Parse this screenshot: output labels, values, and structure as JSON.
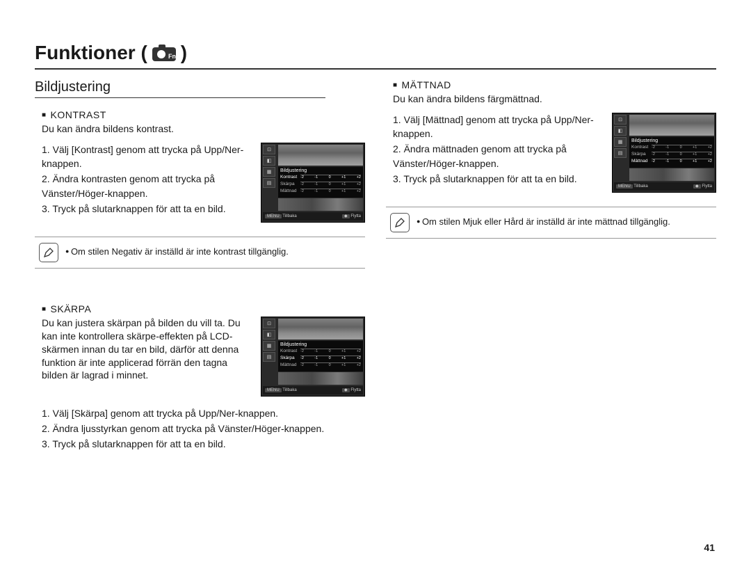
{
  "header": {
    "title_prefix": "Funktioner (",
    "title_suffix": " )"
  },
  "left": {
    "section_title": "Bildjustering",
    "kontrast": {
      "heading": "KONTRAST",
      "desc": "Du kan ändra bildens kontrast.",
      "steps": [
        "1. Välj [Kontrast] genom att trycka på Upp/Ner-knappen.",
        "2. Ändra kontrasten genom att trycka på Vänster/Höger-knappen.",
        "3. Tryck på slutarknappen för att ta en bild."
      ],
      "note": "Om stilen Negativ är inställd är inte kontrast tillgänglig."
    },
    "skarpa": {
      "heading": "SKÄRPA",
      "desc": "Du kan justera skärpan på bilden du vill ta. Du kan inte kontrollera skärpe-effekten på LCD-skärmen innan du tar en bild, därför att denna funktion är inte applicerad förrän den tagna bilden är lagrad i minnet.",
      "steps": [
        "1. Välj [Skärpa] genom att trycka på Upp/Ner-knappen.",
        "2. Ändra ljusstyrkan genom att trycka på Vänster/Höger-knappen.",
        "3. Tryck på slutarknappen för att ta en bild."
      ]
    }
  },
  "right": {
    "mattnad": {
      "heading": "MÄTTNAD",
      "desc": "Du kan ändra bildens färgmättnad.",
      "steps": [
        "1. Välj [Mättnad] genom att trycka på Upp/Ner-knappen.",
        "2. Ändra mättnaden genom att trycka på Vänster/Höger-knappen.",
        "3. Tryck på slutarknappen för att ta en bild."
      ],
      "note": "Om stilen Mjuk eller Hård är inställd är inte mättnad tillgänglig."
    }
  },
  "lcd": {
    "panel_title": "Bildjustering",
    "rows": [
      {
        "label": "Kontrast",
        "ticks": [
          "-2",
          "-1",
          "0",
          "+1",
          "+2"
        ]
      },
      {
        "label": "Skärpa",
        "ticks": [
          "-2",
          "-1",
          "0",
          "+1",
          "+2"
        ]
      },
      {
        "label": "Mättnad",
        "ticks": [
          "-2",
          "-1",
          "0",
          "+1",
          "+2"
        ]
      }
    ],
    "footer_left_btn": "MENU",
    "footer_left": "Tillbaka",
    "footer_right_btn": "◆",
    "footer_right": "Flytta"
  },
  "page_number": "41"
}
